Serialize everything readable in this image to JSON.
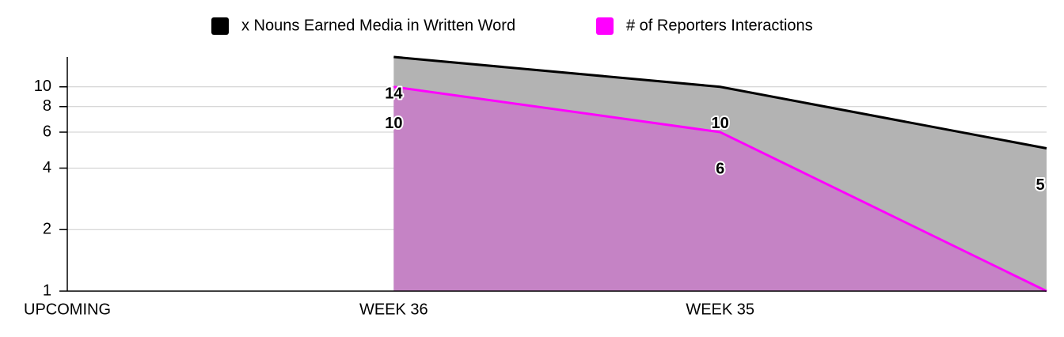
{
  "chart_data": {
    "type": "area",
    "categories": [
      "UPCOMING",
      "WEEK 36",
      "WEEK 35",
      null
    ],
    "series": [
      {
        "name": "x Nouns Earned Media in Written Word",
        "color": "#000000",
        "fill": "#b3b3b3",
        "values": [
          null,
          14,
          10,
          5
        ]
      },
      {
        "name": "# of Reporters Interactions",
        "color": "#ff00ff",
        "fill": "#c77dc7",
        "values": [
          null,
          10,
          6,
          1
        ]
      }
    ],
    "log_scale": true,
    "ylim": [
      1,
      14
    ],
    "yticks": [
      1,
      2,
      4,
      6,
      8,
      10
    ],
    "grid": true,
    "legend": "top",
    "data_labels": true
  }
}
